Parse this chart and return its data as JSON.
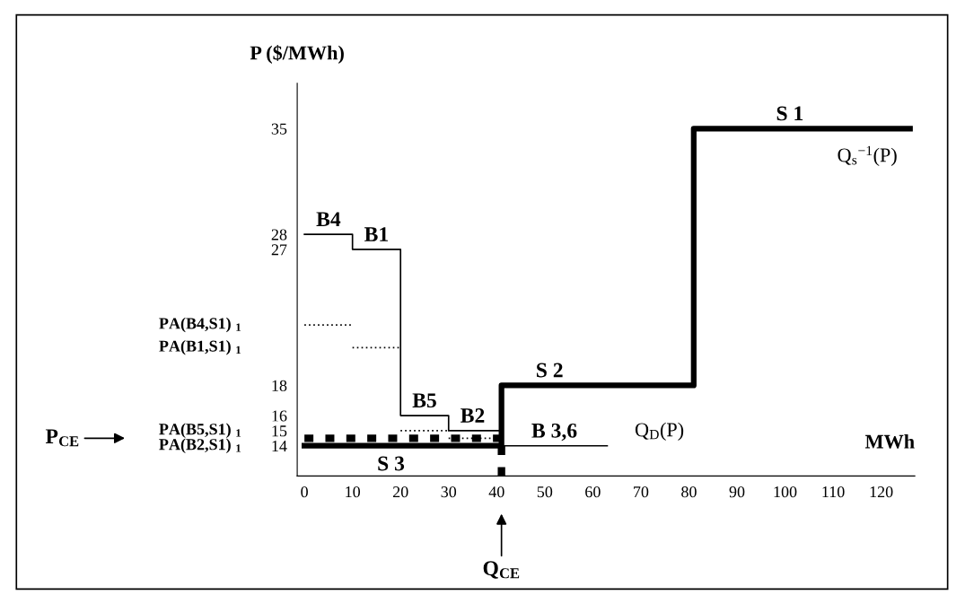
{
  "chart_data": {
    "type": "step",
    "ylabel": "P ($/MWh)",
    "xlabel": "MWh",
    "legend": false,
    "grid": false,
    "xlim": [
      -1.5,
      127
    ],
    "xticks": [
      0,
      10,
      20,
      30,
      40,
      50,
      60,
      70,
      80,
      90,
      100,
      110,
      120
    ],
    "ylim": [
      12,
      38
    ],
    "yticks": [
      14,
      15,
      16,
      18,
      27,
      28,
      35
    ],
    "series": [
      {
        "name": "Q$_{s}$$^{−1}$(P)",
        "color": "#000000",
        "x": [
          0,
          41,
          81,
          126
        ],
        "values": [
          14,
          18,
          35,
          35
        ]
      },
      {
        "name": "Q$_{D}$(P)",
        "color": "#000000",
        "x": [
          0,
          10,
          20,
          30,
          41,
          63
        ],
        "values": [
          28,
          27,
          16,
          15,
          14,
          14
        ]
      },
      {
        "type": "line",
        "line_style": "dotted",
        "color": "#000000",
        "x": [
          0,
          10
        ],
        "values": [
          22,
          22
        ]
      },
      {
        "type": "line",
        "line_style": "dotted",
        "color": "#000000",
        "x": [
          10,
          20
        ],
        "values": [
          20.5,
          20.5
        ]
      },
      {
        "type": "line",
        "line_style": "dotted",
        "color": "#000000",
        "x": [
          20,
          30
        ],
        "values": [
          15,
          15
        ]
      },
      {
        "type": "line",
        "line_style": "dotted",
        "color": "#000000",
        "x": [
          30,
          41
        ],
        "values": [
          14.5,
          14.5
        ]
      },
      {
        "type": "line",
        "line_style": "dashed",
        "color": "#000000",
        "x": [
          0,
          41
        ],
        "values": [
          14.5,
          14.5
        ]
      },
      {
        "type": "line",
        "line_style": "dashed",
        "color": "#000000",
        "x": [
          41,
          41
        ],
        "values": [
          12,
          14.5
        ]
      }
    ],
    "annotations": [
      {
        "text": "B4",
        "x": 5,
        "y": 28
      },
      {
        "text": "B1",
        "x": 15,
        "y": 27
      },
      {
        "text": "B5",
        "x": 25,
        "y": 16
      },
      {
        "text": "B2",
        "x": 35,
        "y": 15
      },
      {
        "text": "B 3,6",
        "x": 52,
        "y": 14
      },
      {
        "text": "S 3",
        "x": 18,
        "y": 14
      },
      {
        "text": "S 2",
        "x": 51,
        "y": 18
      },
      {
        "text": "S 1",
        "x": 101,
        "y": 35
      },
      "PA(B4,S1) $_{1}$",
      "PA(B1,S1) $_{1}$",
      "PA(B5,S1) $_{1}$",
      "PA(B2,S1) $_{1}$",
      "P$_{CE}$",
      "Q$_{CE}$"
    ]
  }
}
